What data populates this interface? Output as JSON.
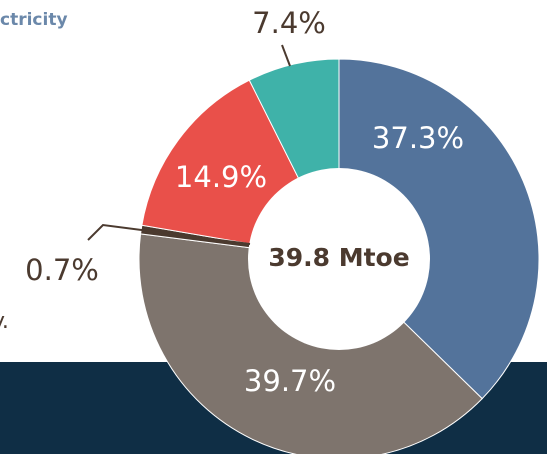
{
  "header_fragment": "ctricity",
  "side_fragment": "y.",
  "chart_data": {
    "type": "donut",
    "center_label": "39.8 Mtoe",
    "values": [
      37.3,
      39.7,
      0.7,
      14.9,
      7.4
    ],
    "value_labels": [
      "37.3%",
      "39.7%",
      "0.7%",
      "14.9%",
      "7.4%"
    ],
    "colors": [
      "#53739b",
      "#7e746d",
      "#4b3a2f",
      "#e9504a",
      "#3fb2a9"
    ]
  }
}
